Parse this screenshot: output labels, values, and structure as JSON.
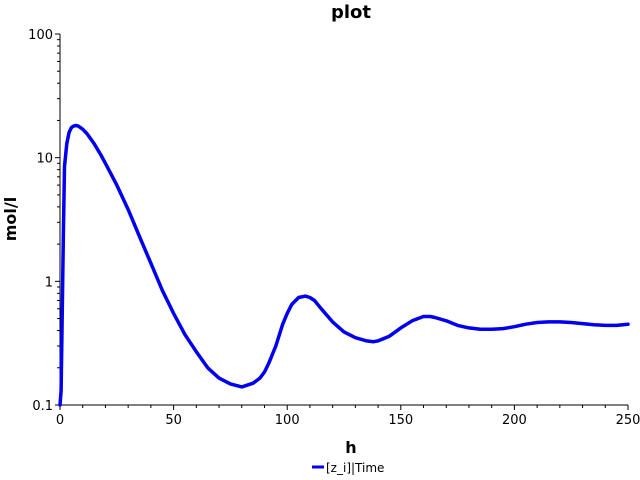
{
  "chart_data": {
    "type": "line",
    "title": "plot",
    "xlabel": "h",
    "ylabel": "mol/l",
    "xlim": [
      0,
      250
    ],
    "ylim": [
      0.1,
      100
    ],
    "yscale": "log",
    "grid": false,
    "legend_position": "bottom-center",
    "x_ticks": [
      "0",
      "50",
      "100",
      "150",
      "200",
      "250"
    ],
    "y_ticks": [
      "0.1",
      "1",
      "10",
      "100"
    ],
    "series": [
      {
        "name": "[z_i]|Time",
        "color": "#0000ee",
        "x": [
          0,
          0.5,
          1,
          1.5,
          2,
          3,
          4,
          5,
          6,
          7,
          8,
          10,
          12,
          15,
          18,
          20,
          25,
          30,
          35,
          40,
          45,
          50,
          55,
          60,
          65,
          70,
          75,
          80,
          85,
          88,
          90,
          92,
          95,
          98,
          100,
          102,
          105,
          108,
          110,
          112,
          115,
          120,
          125,
          130,
          135,
          138,
          140,
          145,
          150,
          155,
          160,
          163,
          165,
          170,
          175,
          180,
          185,
          190,
          195,
          200,
          205,
          210,
          215,
          220,
          225,
          230,
          235,
          240,
          245,
          250
        ],
        "values": [
          0.1,
          0.13,
          0.6,
          2.5,
          8.5,
          13,
          16,
          17.5,
          18,
          18.2,
          18,
          17,
          15.5,
          13,
          10.5,
          9,
          6,
          3.8,
          2.3,
          1.4,
          0.85,
          0.55,
          0.37,
          0.27,
          0.2,
          0.165,
          0.148,
          0.14,
          0.15,
          0.165,
          0.185,
          0.22,
          0.3,
          0.45,
          0.55,
          0.65,
          0.74,
          0.76,
          0.74,
          0.7,
          0.6,
          0.47,
          0.39,
          0.35,
          0.33,
          0.325,
          0.33,
          0.36,
          0.42,
          0.48,
          0.52,
          0.52,
          0.51,
          0.48,
          0.44,
          0.42,
          0.41,
          0.41,
          0.415,
          0.43,
          0.45,
          0.465,
          0.47,
          0.47,
          0.465,
          0.455,
          0.445,
          0.44,
          0.44,
          0.45
        ]
      }
    ]
  }
}
